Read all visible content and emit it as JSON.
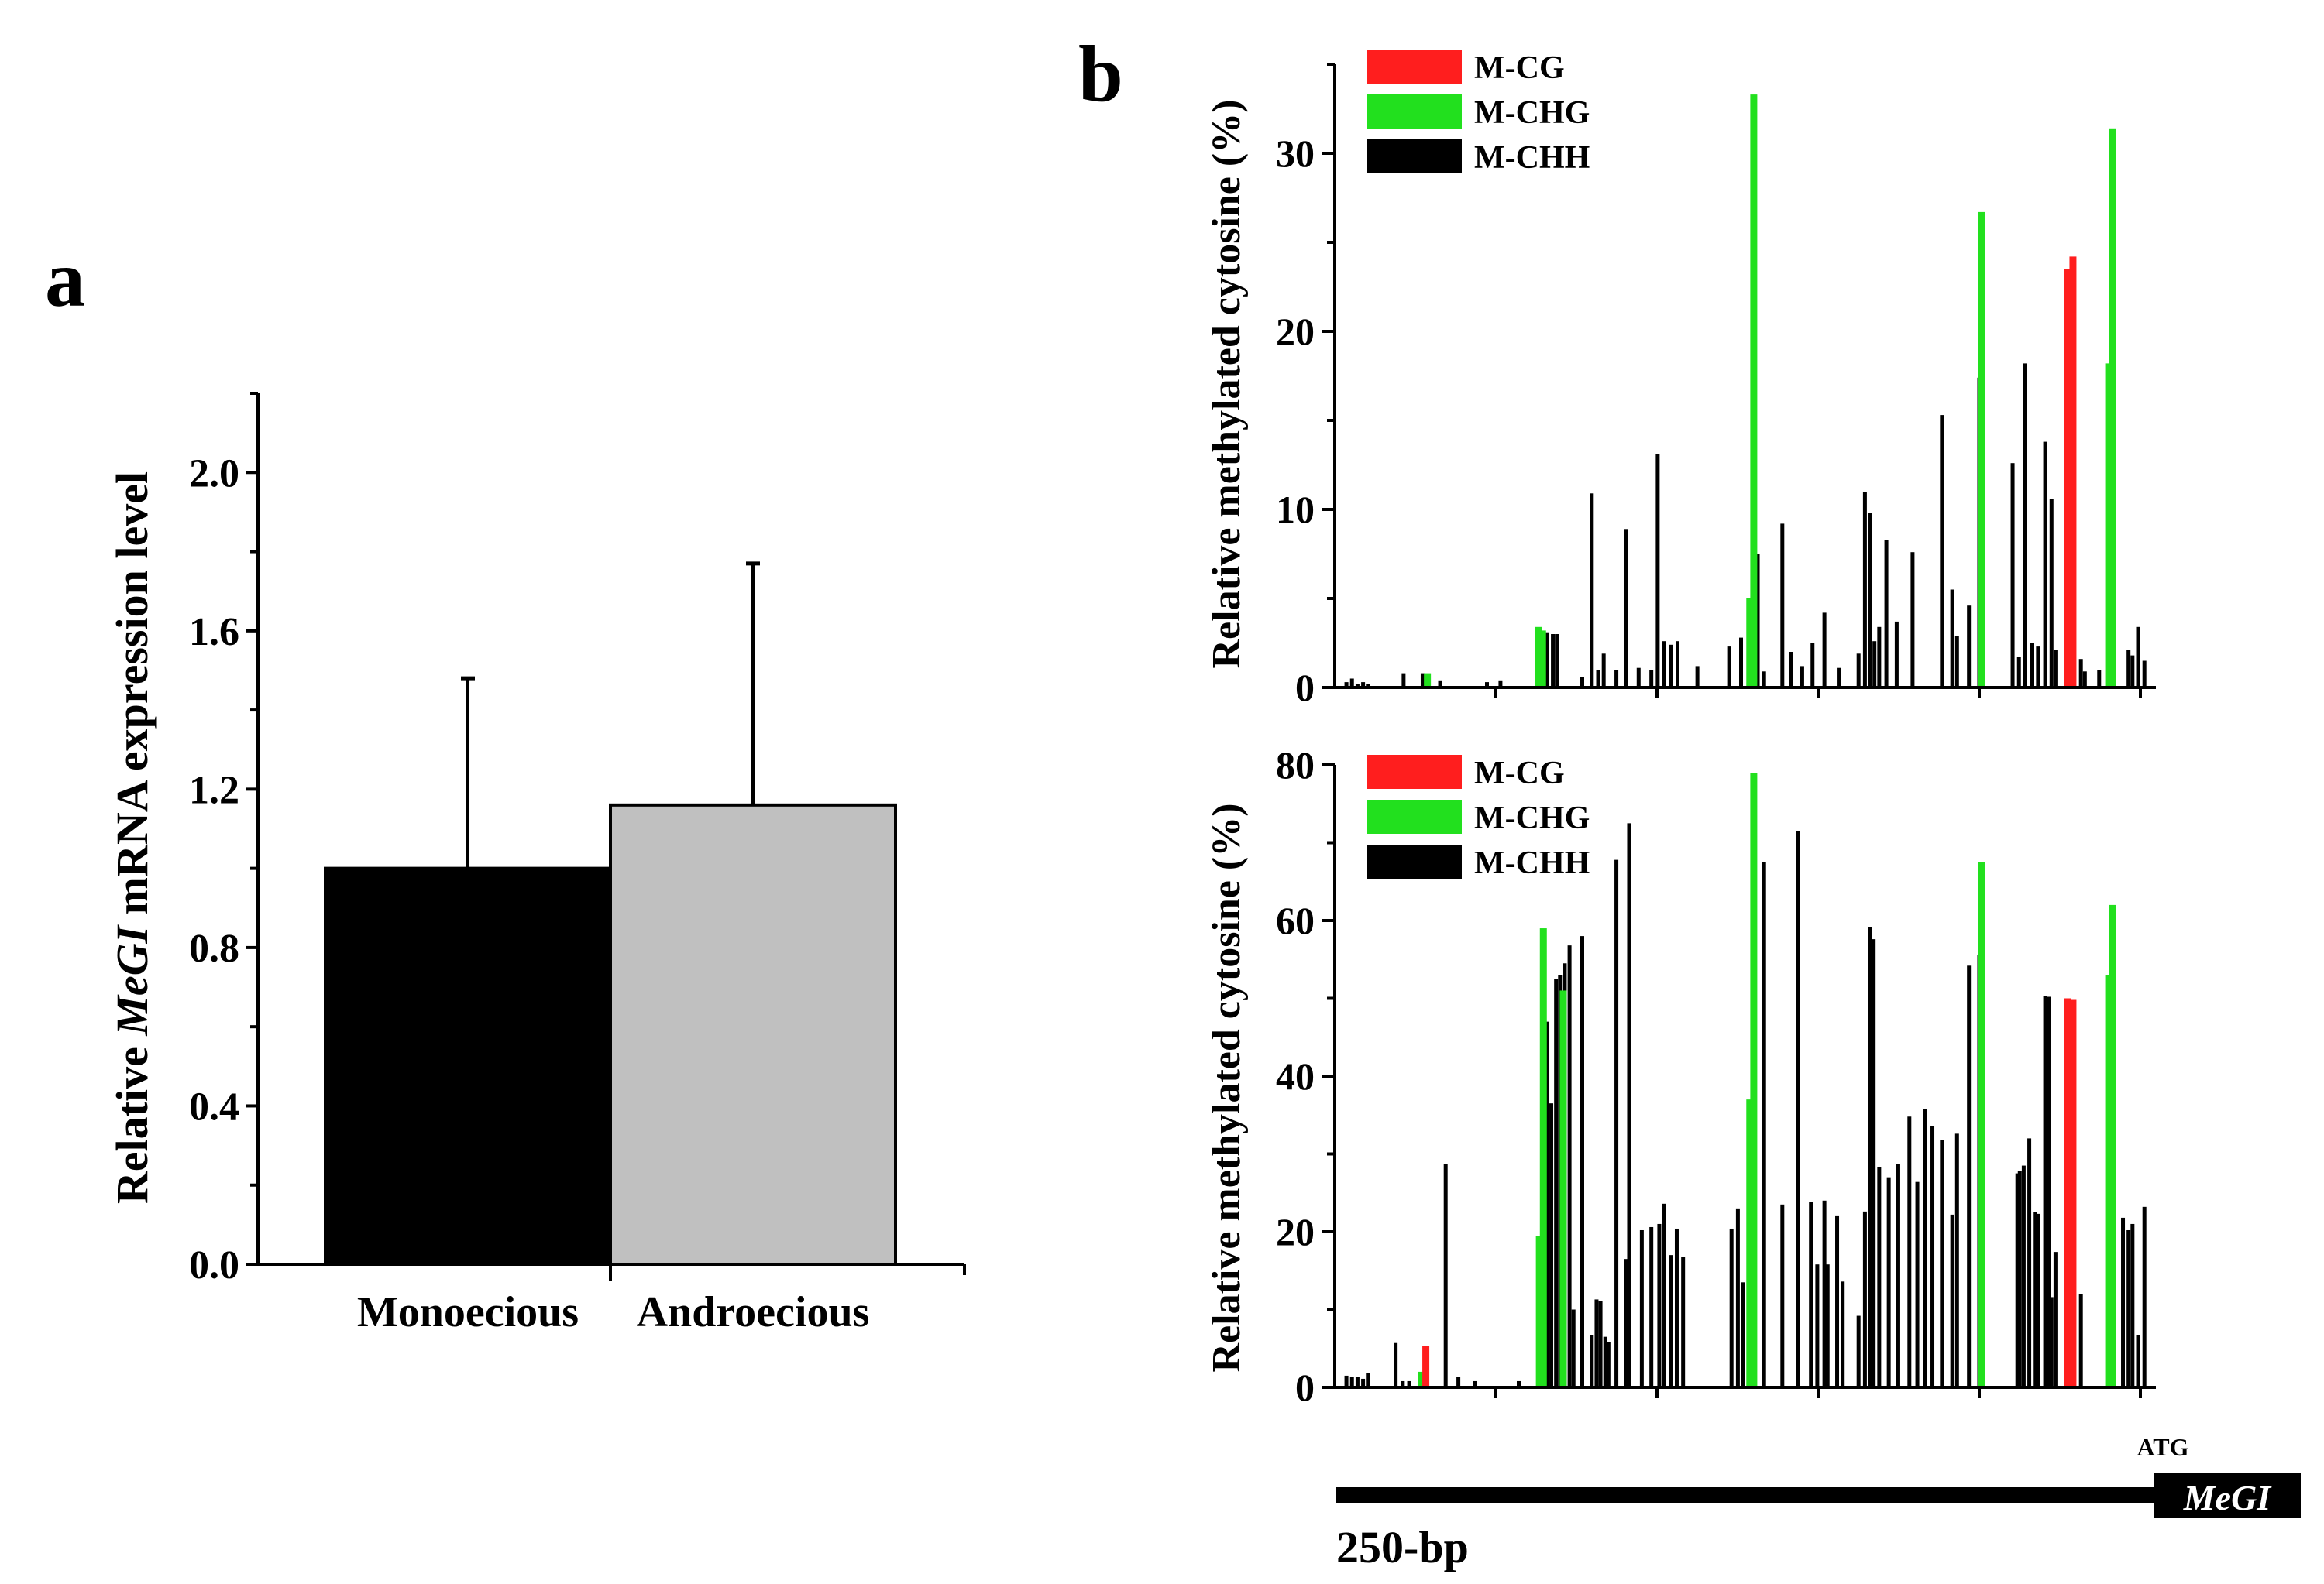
{
  "chart_data": [
    {
      "id": "a",
      "type": "bar",
      "panel_label": "a",
      "ylabel_prefix": "Relative ",
      "ylabel_gene": "MeGI",
      "ylabel_suffix": " mRNA expression level",
      "ylim": [
        0,
        2.2
      ],
      "yticks": [
        "0.0",
        "0.4",
        "0.8",
        "1.2",
        "1.6",
        "2.0"
      ],
      "categories": [
        "Monoecious",
        "Androecious"
      ],
      "values": [
        1.0,
        1.16
      ],
      "errors": [
        0.48,
        0.61
      ],
      "colors": [
        "#000000",
        "#c0c0c0"
      ]
    },
    {
      "id": "b_top",
      "type": "bar",
      "panel_label": "b",
      "ylabel": "Relative methylated cytosine (%)",
      "ylim": [
        0,
        35
      ],
      "yticks": [
        "0",
        "10",
        "20",
        "30"
      ],
      "legend": [
        {
          "label": "M-CG",
          "color": "#ff1e1e"
        },
        {
          "label": "M-CHG",
          "color": "#22e01e"
        },
        {
          "label": "M-CHH",
          "color": "#000000"
        }
      ],
      "x_domain": [
        0,
        1000
      ],
      "series": [
        {
          "name": "M-CG",
          "x": [
            911,
            918
          ],
          "values": [
            23.5,
            24.2
          ]
        },
        {
          "name": "M-CHG",
          "x": [
            105,
            245,
            250,
            511,
            516,
            803,
            963,
            968
          ],
          "values": [
            0.8,
            3.4,
            3.2,
            5.0,
            33.3,
            26.7,
            18.2,
            31.4
          ]
        },
        {
          "name": "M-CHH",
          "x": [
            3,
            10,
            17,
            24,
            30,
            75,
            99,
            121,
            180,
            197,
            256,
            263,
            268,
            300,
            312,
            320,
            327,
            343,
            355,
            371,
            387,
            395,
            403,
            412,
            420,
            445,
            485,
            500,
            521,
            529,
            552,
            563,
            577,
            590,
            605,
            623,
            648,
            656,
            662,
            668,
            674,
            683,
            696,
            716,
            753,
            766,
            772,
            787,
            800,
            842,
            850,
            858,
            866,
            874,
            883,
            891,
            896,
            928,
            933,
            951,
            988,
            993,
            1000,
            1008
          ],
          "values": [
            0.3,
            0.5,
            0.2,
            0.3,
            0.2,
            0.8,
            0.8,
            0.4,
            0.3,
            0.4,
            3.1,
            3.0,
            3.0,
            0.6,
            10.9,
            1.0,
            1.9,
            1.0,
            8.9,
            1.1,
            1.0,
            13.1,
            2.6,
            2.4,
            2.6,
            1.2,
            2.3,
            2.8,
            7.5,
            0.9,
            9.2,
            2.0,
            1.2,
            2.5,
            4.2,
            1.1,
            1.9,
            11.0,
            9.8,
            2.6,
            3.4,
            8.3,
            3.7,
            7.6,
            15.3,
            5.5,
            2.9,
            4.6,
            17.4,
            12.6,
            1.7,
            18.2,
            2.5,
            2.3,
            13.8,
            10.6,
            2.1,
            1.6,
            0.9,
            1.0,
            2.1,
            1.8,
            3.4,
            1.5
          ]
        }
      ]
    },
    {
      "id": "b_bottom",
      "type": "bar",
      "ylabel": "Relative methylated cytosine (%)",
      "ylim": [
        0,
        80
      ],
      "yticks": [
        "0",
        "20",
        "40",
        "60",
        "80"
      ],
      "legend": [
        {
          "label": "M-CG",
          "color": "#ff1e1e"
        },
        {
          "label": "M-CHG",
          "color": "#22e01e"
        },
        {
          "label": "M-CHH",
          "color": "#000000"
        }
      ],
      "x_domain": [
        0,
        1000
      ],
      "series": [
        {
          "name": "M-CG",
          "x": [
            103,
            911,
            918
          ],
          "values": [
            5.3,
            50.0,
            49.8
          ]
        },
        {
          "name": "M-CHG",
          "x": [
            98,
            246,
            251,
            276,
            511,
            516,
            803,
            963,
            968
          ],
          "values": [
            2.0,
            19.5,
            59.0,
            51.0,
            37.0,
            79.0,
            67.5,
            53.0,
            62.0
          ]
        },
        {
          "name": "M-CHH",
          "x": [
            3,
            10,
            17,
            24,
            30,
            65,
            74,
            82,
            128,
            144,
            165,
            220,
            256,
            261,
            267,
            272,
            278,
            284,
            289,
            300,
            312,
            318,
            323,
            329,
            333,
            343,
            355,
            359,
            375,
            387,
            397,
            403,
            412,
            419,
            427,
            488,
            496,
            502,
            529,
            552,
            572,
            588,
            596,
            605,
            609,
            621,
            628,
            648,
            656,
            662,
            667,
            674,
            686,
            698,
            712,
            722,
            732,
            741,
            753,
            766,
            772,
            787,
            800,
            848,
            851,
            856,
            863,
            870,
            874,
            883,
            888,
            891,
            896,
            928,
            981,
            988,
            993,
            1000,
            1008
          ],
          "values": [
            1.5,
            1.3,
            1.3,
            1.1,
            1.8,
            5.7,
            0.8,
            0.8,
            28.7,
            1.3,
            0.8,
            0.8,
            47.0,
            36.5,
            52.5,
            53.0,
            54.5,
            56.8,
            10.0,
            58.0,
            6.7,
            11.3,
            11.1,
            6.5,
            5.8,
            67.8,
            16.5,
            72.5,
            20.2,
            20.6,
            21.0,
            23.6,
            17.0,
            20.4,
            16.8,
            20.4,
            23.0,
            13.5,
            67.5,
            23.5,
            71.5,
            23.8,
            15.8,
            24.0,
            15.8,
            22.0,
            13.6,
            9.2,
            22.6,
            59.2,
            57.6,
            28.3,
            27.0,
            28.7,
            34.8,
            26.4,
            35.8,
            33.6,
            31.8,
            22.2,
            32.6,
            54.2,
            55.6,
            27.5,
            27.8,
            28.5,
            32.0,
            22.5,
            22.3,
            50.3,
            50.2,
            11.6,
            17.4,
            12.0,
            21.8,
            20.2,
            21.0,
            6.7,
            23.2
          ]
        }
      ],
      "map": {
        "scale_bar_label": "250-bp",
        "start_codon": "ATG",
        "gene": "MeGI"
      }
    }
  ]
}
